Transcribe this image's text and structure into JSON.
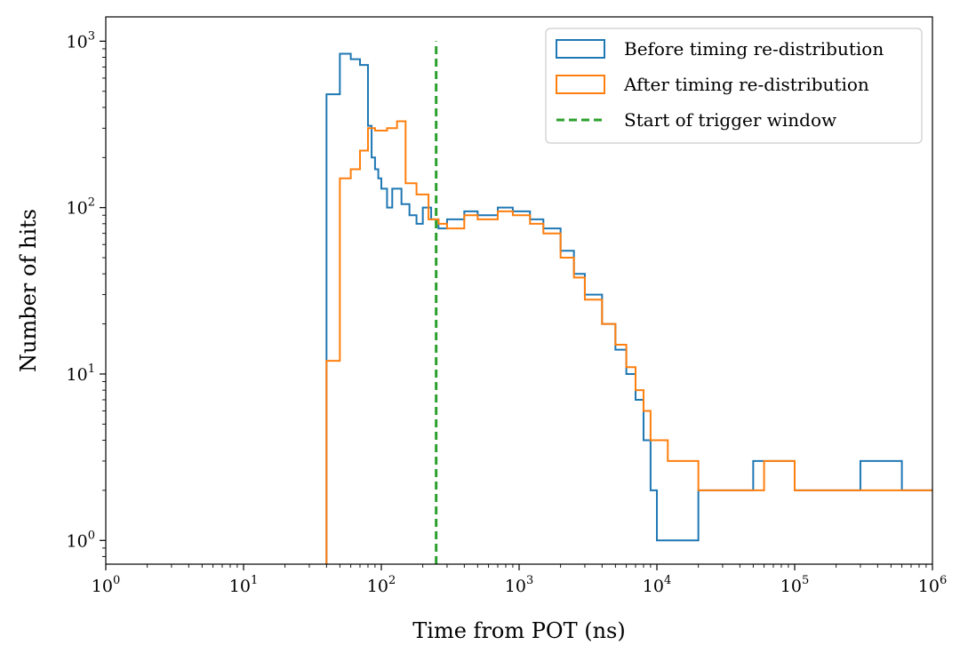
{
  "chart_data": {
    "type": "histogram-step",
    "xlabel": "Time from POT (ns)",
    "ylabel": "Number of hits",
    "xscale": "log",
    "yscale": "log",
    "xlim": [
      1,
      1000000
    ],
    "ylim": [
      0.72,
      1400
    ],
    "grid": false,
    "legend_position": "top-right",
    "x_tick_labels": [
      {
        "base": "10",
        "exp": "0",
        "value": 1
      },
      {
        "base": "10",
        "exp": "1",
        "value": 10
      },
      {
        "base": "10",
        "exp": "2",
        "value": 100
      },
      {
        "base": "10",
        "exp": "3",
        "value": 1000
      },
      {
        "base": "10",
        "exp": "4",
        "value": 10000
      },
      {
        "base": "10",
        "exp": "5",
        "value": 100000
      },
      {
        "base": "10",
        "exp": "6",
        "value": 1000000
      }
    ],
    "y_tick_labels": [
      {
        "base": "10",
        "exp": "0",
        "value": 1
      },
      {
        "base": "10",
        "exp": "1",
        "value": 10
      },
      {
        "base": "10",
        "exp": "2",
        "value": 100
      },
      {
        "base": "10",
        "exp": "3",
        "value": 1000
      }
    ],
    "series": [
      {
        "name": "Before timing re-distribution",
        "color": "#1f77b4",
        "style": "step",
        "points": [
          [
            40,
            0.72
          ],
          [
            40,
            480
          ],
          [
            50,
            480
          ],
          [
            50,
            840
          ],
          [
            60,
            840
          ],
          [
            60,
            780
          ],
          [
            70,
            780
          ],
          [
            70,
            720
          ],
          [
            80,
            720
          ],
          [
            80,
            310
          ],
          [
            85,
            310
          ],
          [
            85,
            200
          ],
          [
            90,
            200
          ],
          [
            90,
            170
          ],
          [
            95,
            170
          ],
          [
            95,
            150
          ],
          [
            100,
            150
          ],
          [
            100,
            130
          ],
          [
            110,
            130
          ],
          [
            110,
            100
          ],
          [
            120,
            100
          ],
          [
            120,
            130
          ],
          [
            140,
            130
          ],
          [
            140,
            105
          ],
          [
            160,
            105
          ],
          [
            160,
            90
          ],
          [
            180,
            90
          ],
          [
            180,
            80
          ],
          [
            200,
            80
          ],
          [
            200,
            100
          ],
          [
            230,
            100
          ],
          [
            230,
            85
          ],
          [
            260,
            85
          ],
          [
            260,
            75
          ],
          [
            300,
            75
          ],
          [
            300,
            85
          ],
          [
            400,
            85
          ],
          [
            400,
            95
          ],
          [
            500,
            95
          ],
          [
            500,
            90
          ],
          [
            700,
            90
          ],
          [
            700,
            100
          ],
          [
            900,
            100
          ],
          [
            900,
            95
          ],
          [
            1200,
            95
          ],
          [
            1200,
            85
          ],
          [
            1500,
            85
          ],
          [
            1500,
            75
          ],
          [
            2000,
            75
          ],
          [
            2000,
            55
          ],
          [
            2500,
            55
          ],
          [
            2500,
            40
          ],
          [
            3000,
            40
          ],
          [
            3000,
            30
          ],
          [
            4000,
            30
          ],
          [
            4000,
            20
          ],
          [
            5000,
            20
          ],
          [
            5000,
            14
          ],
          [
            6000,
            14
          ],
          [
            6000,
            10
          ],
          [
            7000,
            10
          ],
          [
            7000,
            7
          ],
          [
            8000,
            7
          ],
          [
            8000,
            4
          ],
          [
            9000,
            4
          ],
          [
            9000,
            2
          ],
          [
            10000,
            2
          ],
          [
            10000,
            1
          ],
          [
            20000,
            1
          ],
          [
            20000,
            2
          ],
          [
            50000,
            2
          ],
          [
            50000,
            3
          ],
          [
            100000,
            3
          ],
          [
            100000,
            2
          ],
          [
            300000,
            2
          ],
          [
            300000,
            3
          ],
          [
            600000,
            3
          ],
          [
            600000,
            2
          ],
          [
            1000000,
            2
          ]
        ]
      },
      {
        "name": "After timing re-distribution",
        "color": "#ff7f0e",
        "style": "step",
        "points": [
          [
            40,
            0.72
          ],
          [
            40,
            12
          ],
          [
            50,
            12
          ],
          [
            50,
            150
          ],
          [
            60,
            150
          ],
          [
            60,
            170
          ],
          [
            70,
            170
          ],
          [
            70,
            220
          ],
          [
            80,
            220
          ],
          [
            80,
            300
          ],
          [
            90,
            300
          ],
          [
            90,
            290
          ],
          [
            110,
            290
          ],
          [
            110,
            300
          ],
          [
            130,
            300
          ],
          [
            130,
            330
          ],
          [
            150,
            330
          ],
          [
            150,
            140
          ],
          [
            180,
            140
          ],
          [
            180,
            120
          ],
          [
            220,
            120
          ],
          [
            220,
            85
          ],
          [
            260,
            85
          ],
          [
            260,
            80
          ],
          [
            300,
            80
          ],
          [
            300,
            75
          ],
          [
            400,
            75
          ],
          [
            400,
            90
          ],
          [
            500,
            90
          ],
          [
            500,
            85
          ],
          [
            700,
            85
          ],
          [
            700,
            95
          ],
          [
            900,
            95
          ],
          [
            900,
            90
          ],
          [
            1200,
            90
          ],
          [
            1200,
            80
          ],
          [
            1500,
            80
          ],
          [
            1500,
            70
          ],
          [
            2000,
            70
          ],
          [
            2000,
            50
          ],
          [
            2500,
            50
          ],
          [
            2500,
            38
          ],
          [
            3000,
            38
          ],
          [
            3000,
            28
          ],
          [
            4000,
            28
          ],
          [
            4000,
            20
          ],
          [
            5000,
            20
          ],
          [
            5000,
            15
          ],
          [
            6000,
            15
          ],
          [
            6000,
            11
          ],
          [
            7000,
            11
          ],
          [
            7000,
            8
          ],
          [
            8000,
            8
          ],
          [
            8000,
            6
          ],
          [
            9000,
            6
          ],
          [
            9000,
            4
          ],
          [
            12000,
            4
          ],
          [
            12000,
            3
          ],
          [
            20000,
            3
          ],
          [
            20000,
            2
          ],
          [
            60000,
            2
          ],
          [
            60000,
            3
          ],
          [
            100000,
            3
          ],
          [
            100000,
            2
          ],
          [
            1000000,
            2
          ]
        ]
      },
      {
        "name": "Start of trigger window",
        "color": "#2ca02c",
        "style": "vline-dashed",
        "x": 250,
        "y_range": [
          0.72,
          1000
        ]
      }
    ]
  }
}
